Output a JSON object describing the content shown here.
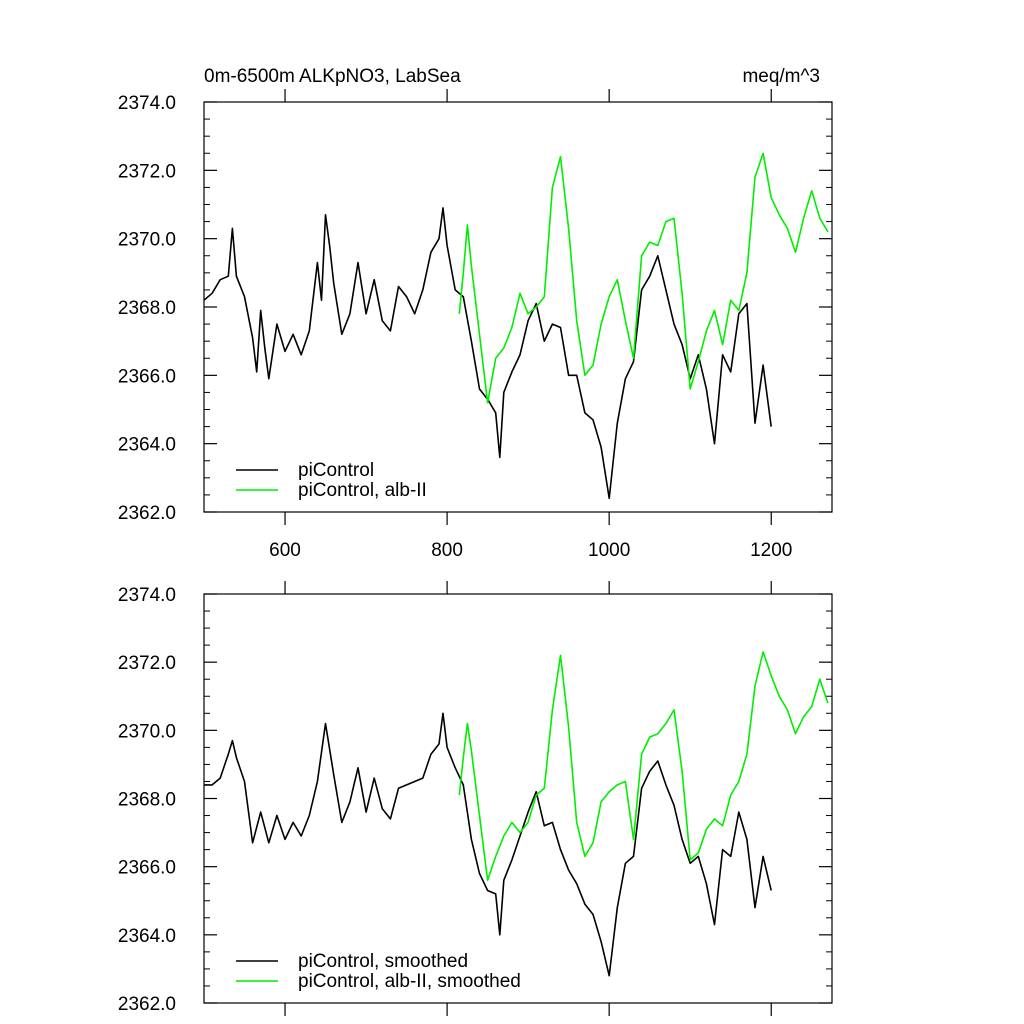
{
  "figure": {
    "title_left": "0m-6500m ALKpNO3, LabSea",
    "title_right": "meq/m^3"
  },
  "colors": {
    "piControl": "#000000",
    "alb": "#00ee00"
  },
  "chart_data": [
    {
      "type": "line",
      "panel": "top",
      "xlim": [
        500,
        1275
      ],
      "ylim": [
        2362.0,
        2374.0
      ],
      "xticks": [
        600,
        800,
        1000,
        1200
      ],
      "xtick_labels": [
        "600",
        "800",
        "1000",
        "1200"
      ],
      "yticks": [
        2362.0,
        2364.0,
        2366.0,
        2368.0,
        2370.0,
        2372.0,
        2374.0
      ],
      "ytick_labels": [
        "2362.0",
        "2364.0",
        "2366.0",
        "2368.0",
        "2370.0",
        "2372.0",
        "2374.0"
      ],
      "legend_position": "bottom-left",
      "series": [
        {
          "name": "piControl",
          "color": "#000000",
          "points": [
            [
              500,
              2368.2
            ],
            [
              510,
              2368.4
            ],
            [
              520,
              2368.8
            ],
            [
              530,
              2368.9
            ],
            [
              535,
              2370.3
            ],
            [
              540,
              2368.9
            ],
            [
              550,
              2368.3
            ],
            [
              560,
              2367.1
            ],
            [
              565,
              2366.1
            ],
            [
              570,
              2367.9
            ],
            [
              575,
              2366.8
            ],
            [
              580,
              2365.9
            ],
            [
              590,
              2367.5
            ],
            [
              600,
              2366.7
            ],
            [
              610,
              2367.2
            ],
            [
              620,
              2366.6
            ],
            [
              630,
              2367.3
            ],
            [
              640,
              2369.3
            ],
            [
              645,
              2368.2
            ],
            [
              650,
              2370.7
            ],
            [
              655,
              2369.8
            ],
            [
              660,
              2368.7
            ],
            [
              670,
              2367.2
            ],
            [
              680,
              2367.8
            ],
            [
              690,
              2369.3
            ],
            [
              700,
              2367.8
            ],
            [
              710,
              2368.8
            ],
            [
              720,
              2367.6
            ],
            [
              730,
              2367.3
            ],
            [
              740,
              2368.6
            ],
            [
              750,
              2368.3
            ],
            [
              760,
              2367.8
            ],
            [
              770,
              2368.5
            ],
            [
              780,
              2369.6
            ],
            [
              790,
              2370.0
            ],
            [
              795,
              2370.9
            ],
            [
              800,
              2369.8
            ],
            [
              810,
              2368.5
            ],
            [
              820,
              2368.3
            ],
            [
              830,
              2367.0
            ],
            [
              840,
              2365.6
            ],
            [
              850,
              2365.3
            ],
            [
              860,
              2364.9
            ],
            [
              865,
              2363.6
            ],
            [
              870,
              2365.5
            ],
            [
              880,
              2366.1
            ],
            [
              890,
              2366.6
            ],
            [
              900,
              2367.6
            ],
            [
              910,
              2368.1
            ],
            [
              920,
              2367.0
            ],
            [
              930,
              2367.5
            ],
            [
              940,
              2367.4
            ],
            [
              950,
              2366.0
            ],
            [
              960,
              2366.0
            ],
            [
              970,
              2364.9
            ],
            [
              980,
              2364.7
            ],
            [
              990,
              2363.9
            ],
            [
              1000,
              2362.4
            ],
            [
              1010,
              2364.6
            ],
            [
              1020,
              2365.9
            ],
            [
              1030,
              2366.4
            ],
            [
              1040,
              2368.5
            ],
            [
              1050,
              2368.9
            ],
            [
              1060,
              2369.5
            ],
            [
              1070,
              2368.5
            ],
            [
              1080,
              2367.5
            ],
            [
              1090,
              2366.9
            ],
            [
              1100,
              2365.9
            ],
            [
              1110,
              2366.6
            ],
            [
              1120,
              2365.6
            ],
            [
              1130,
              2364.0
            ],
            [
              1140,
              2366.6
            ],
            [
              1150,
              2366.1
            ],
            [
              1160,
              2367.8
            ],
            [
              1170,
              2368.1
            ],
            [
              1180,
              2364.6
            ],
            [
              1190,
              2366.3
            ],
            [
              1200,
              2364.5
            ]
          ]
        },
        {
          "name": "piControl, alb-II",
          "color": "#00ee00",
          "points": [
            [
              815,
              2367.8
            ],
            [
              820,
              2369.0
            ],
            [
              825,
              2370.4
            ],
            [
              830,
              2369.2
            ],
            [
              840,
              2367.2
            ],
            [
              850,
              2365.2
            ],
            [
              860,
              2366.5
            ],
            [
              870,
              2366.8
            ],
            [
              880,
              2367.4
            ],
            [
              890,
              2368.4
            ],
            [
              900,
              2367.8
            ],
            [
              910,
              2368.0
            ],
            [
              920,
              2368.3
            ],
            [
              930,
              2371.5
            ],
            [
              940,
              2372.4
            ],
            [
              950,
              2370.3
            ],
            [
              960,
              2367.6
            ],
            [
              970,
              2366.0
            ],
            [
              980,
              2366.3
            ],
            [
              990,
              2367.5
            ],
            [
              1000,
              2368.3
            ],
            [
              1010,
              2368.8
            ],
            [
              1020,
              2367.6
            ],
            [
              1030,
              2366.5
            ],
            [
              1040,
              2369.5
            ],
            [
              1050,
              2369.9
            ],
            [
              1060,
              2369.8
            ],
            [
              1070,
              2370.5
            ],
            [
              1080,
              2370.6
            ],
            [
              1090,
              2368.4
            ],
            [
              1100,
              2365.6
            ],
            [
              1110,
              2366.4
            ],
            [
              1120,
              2367.3
            ],
            [
              1130,
              2367.9
            ],
            [
              1140,
              2366.9
            ],
            [
              1150,
              2368.2
            ],
            [
              1160,
              2367.9
            ],
            [
              1170,
              2369.0
            ],
            [
              1180,
              2371.8
            ],
            [
              1190,
              2372.5
            ],
            [
              1200,
              2371.2
            ],
            [
              1210,
              2370.7
            ],
            [
              1220,
              2370.3
            ],
            [
              1230,
              2369.6
            ],
            [
              1240,
              2370.6
            ],
            [
              1250,
              2371.4
            ],
            [
              1260,
              2370.6
            ],
            [
              1270,
              2370.2
            ]
          ]
        }
      ]
    },
    {
      "type": "line",
      "panel": "bottom",
      "xlim": [
        500,
        1275
      ],
      "ylim": [
        2362.0,
        2374.0
      ],
      "xticks": [
        600,
        800,
        1000,
        1200
      ],
      "yticks": [
        2362.0,
        2364.0,
        2366.0,
        2368.0,
        2370.0,
        2372.0,
        2374.0
      ],
      "ytick_labels": [
        "2362.0",
        "2364.0",
        "2366.0",
        "2368.0",
        "2370.0",
        "2372.0",
        "2374.0"
      ],
      "legend_position": "bottom-left",
      "series": [
        {
          "name": "piControl, smoothed",
          "color": "#000000",
          "points": [
            [
              500,
              2368.4
            ],
            [
              510,
              2368.4
            ],
            [
              520,
              2368.6
            ],
            [
              530,
              2369.3
            ],
            [
              535,
              2369.7
            ],
            [
              540,
              2369.2
            ],
            [
              550,
              2368.5
            ],
            [
              560,
              2366.7
            ],
            [
              570,
              2367.6
            ],
            [
              580,
              2366.7
            ],
            [
              590,
              2367.5
            ],
            [
              600,
              2366.8
            ],
            [
              610,
              2367.3
            ],
            [
              620,
              2366.9
            ],
            [
              630,
              2367.5
            ],
            [
              640,
              2368.5
            ],
            [
              650,
              2370.2
            ],
            [
              660,
              2368.7
            ],
            [
              670,
              2367.3
            ],
            [
              680,
              2367.9
            ],
            [
              690,
              2368.9
            ],
            [
              700,
              2367.6
            ],
            [
              710,
              2368.6
            ],
            [
              720,
              2367.7
            ],
            [
              730,
              2367.4
            ],
            [
              740,
              2368.3
            ],
            [
              750,
              2368.4
            ],
            [
              760,
              2368.5
            ],
            [
              770,
              2368.6
            ],
            [
              780,
              2369.3
            ],
            [
              790,
              2369.6
            ],
            [
              795,
              2370.5
            ],
            [
              800,
              2369.5
            ],
            [
              810,
              2368.9
            ],
            [
              820,
              2368.4
            ],
            [
              830,
              2366.8
            ],
            [
              840,
              2365.8
            ],
            [
              850,
              2365.3
            ],
            [
              860,
              2365.2
            ],
            [
              865,
              2364.0
            ],
            [
              870,
              2365.6
            ],
            [
              880,
              2366.2
            ],
            [
              890,
              2366.9
            ],
            [
              900,
              2367.6
            ],
            [
              910,
              2368.2
            ],
            [
              920,
              2367.2
            ],
            [
              930,
              2367.3
            ],
            [
              940,
              2366.5
            ],
            [
              950,
              2365.9
            ],
            [
              960,
              2365.5
            ],
            [
              970,
              2364.9
            ],
            [
              980,
              2364.6
            ],
            [
              990,
              2363.8
            ],
            [
              1000,
              2362.8
            ],
            [
              1010,
              2364.8
            ],
            [
              1020,
              2366.1
            ],
            [
              1030,
              2366.3
            ],
            [
              1040,
              2368.3
            ],
            [
              1050,
              2368.8
            ],
            [
              1060,
              2369.1
            ],
            [
              1070,
              2368.4
            ],
            [
              1080,
              2367.8
            ],
            [
              1090,
              2366.8
            ],
            [
              1100,
              2366.1
            ],
            [
              1110,
              2366.3
            ],
            [
              1120,
              2365.5
            ],
            [
              1130,
              2364.3
            ],
            [
              1140,
              2366.5
            ],
            [
              1150,
              2366.3
            ],
            [
              1160,
              2367.6
            ],
            [
              1170,
              2366.8
            ],
            [
              1180,
              2364.8
            ],
            [
              1190,
              2366.3
            ],
            [
              1200,
              2365.3
            ]
          ]
        },
        {
          "name": "piControl, alb-II, smoothed",
          "color": "#00ee00",
          "points": [
            [
              815,
              2368.1
            ],
            [
              820,
              2369.2
            ],
            [
              825,
              2370.2
            ],
            [
              830,
              2369.4
            ],
            [
              840,
              2367.5
            ],
            [
              850,
              2365.6
            ],
            [
              860,
              2366.3
            ],
            [
              870,
              2366.9
            ],
            [
              880,
              2367.3
            ],
            [
              890,
              2367.0
            ],
            [
              900,
              2367.3
            ],
            [
              910,
              2368.1
            ],
            [
              920,
              2368.3
            ],
            [
              930,
              2370.6
            ],
            [
              940,
              2372.2
            ],
            [
              950,
              2370.1
            ],
            [
              960,
              2367.3
            ],
            [
              970,
              2366.3
            ],
            [
              980,
              2366.7
            ],
            [
              990,
              2367.9
            ],
            [
              1000,
              2368.2
            ],
            [
              1010,
              2368.4
            ],
            [
              1020,
              2368.5
            ],
            [
              1030,
              2366.8
            ],
            [
              1040,
              2369.3
            ],
            [
              1050,
              2369.8
            ],
            [
              1060,
              2369.9
            ],
            [
              1070,
              2370.2
            ],
            [
              1080,
              2370.6
            ],
            [
              1090,
              2368.8
            ],
            [
              1100,
              2366.2
            ],
            [
              1110,
              2366.4
            ],
            [
              1120,
              2367.1
            ],
            [
              1130,
              2367.4
            ],
            [
              1140,
              2367.2
            ],
            [
              1150,
              2368.1
            ],
            [
              1160,
              2368.5
            ],
            [
              1170,
              2369.3
            ],
            [
              1180,
              2371.3
            ],
            [
              1190,
              2372.3
            ],
            [
              1200,
              2371.6
            ],
            [
              1210,
              2371.0
            ],
            [
              1220,
              2370.6
            ],
            [
              1230,
              2369.9
            ],
            [
              1240,
              2370.4
            ],
            [
              1250,
              2370.7
            ],
            [
              1260,
              2371.5
            ],
            [
              1270,
              2370.8
            ]
          ]
        }
      ]
    }
  ]
}
